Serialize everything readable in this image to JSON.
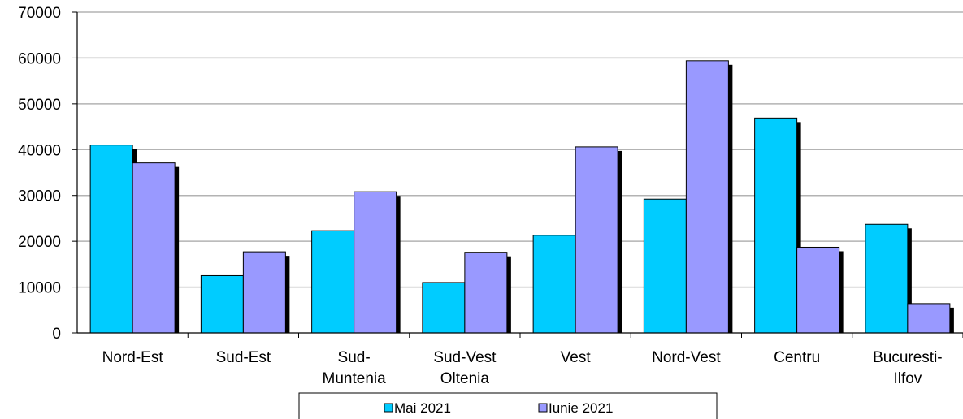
{
  "chart_data": {
    "type": "bar",
    "title": "",
    "xlabel": "",
    "ylabel": "",
    "ylim": [
      0,
      70000
    ],
    "yticks": [
      0,
      10000,
      20000,
      30000,
      40000,
      50000,
      60000,
      70000
    ],
    "yticks_labels": [
      "0",
      "10000",
      "20000",
      "30000",
      "40000",
      "50000",
      "60000",
      "70000"
    ],
    "grid": true,
    "legend_position": "bottom",
    "categories": [
      [
        "Nord-Est"
      ],
      [
        "Sud-Est"
      ],
      [
        "Sud-",
        "Muntenia"
      ],
      [
        "Sud-Vest",
        "Oltenia"
      ],
      [
        "Vest"
      ],
      [
        "Nord-Vest"
      ],
      [
        "Centru"
      ],
      [
        "Bucuresti-",
        "Ilfov"
      ]
    ],
    "series": [
      {
        "name": "Mai 2021",
        "color": "#00CCFF",
        "values": [
          41000,
          12500,
          22300,
          11000,
          21300,
          29200,
          46900,
          23700
        ]
      },
      {
        "name": "Iunie 2021",
        "color": "#9999FF",
        "values": [
          37100,
          17700,
          30800,
          17600,
          40600,
          59400,
          18700,
          6400
        ]
      }
    ]
  }
}
